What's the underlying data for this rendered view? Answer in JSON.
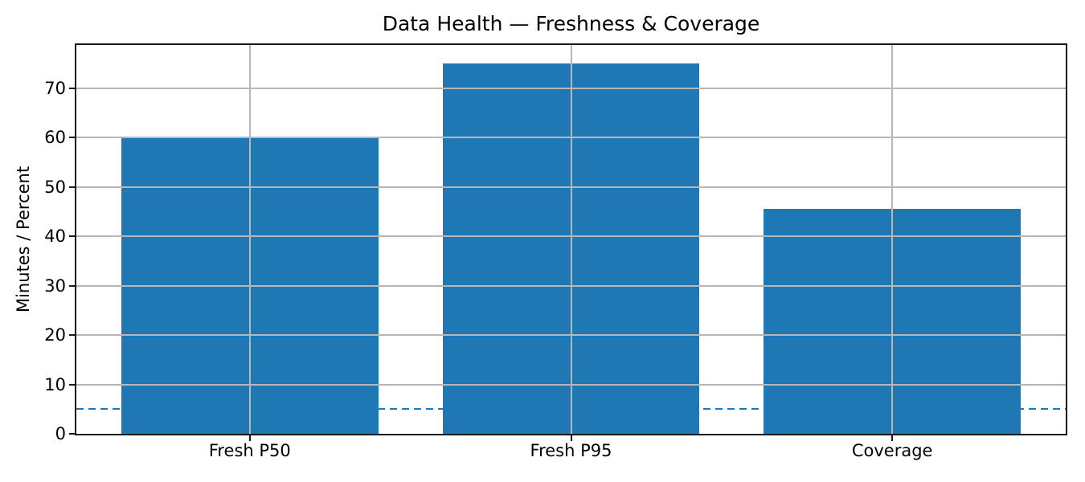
{
  "chart_data": {
    "type": "bar",
    "title": "Data Health — Freshness & Coverage",
    "xlabel": "",
    "ylabel": "Minutes / Percent",
    "categories": [
      "Fresh P50",
      "Fresh P95",
      "Coverage"
    ],
    "values": [
      60,
      75,
      45.5
    ],
    "yticks": [
      0,
      10,
      20,
      30,
      40,
      50,
      60,
      70
    ],
    "ylim": [
      0,
      78.75
    ],
    "grid": true,
    "grid_over_bars": true,
    "legend": "none",
    "bar_color": "#1f77b4",
    "grid_color": "#b7b7b7",
    "spine_color": "#1a1a1a",
    "reference_line": {
      "y": 5,
      "style": "dashed",
      "color": "#1f77b4"
    }
  }
}
